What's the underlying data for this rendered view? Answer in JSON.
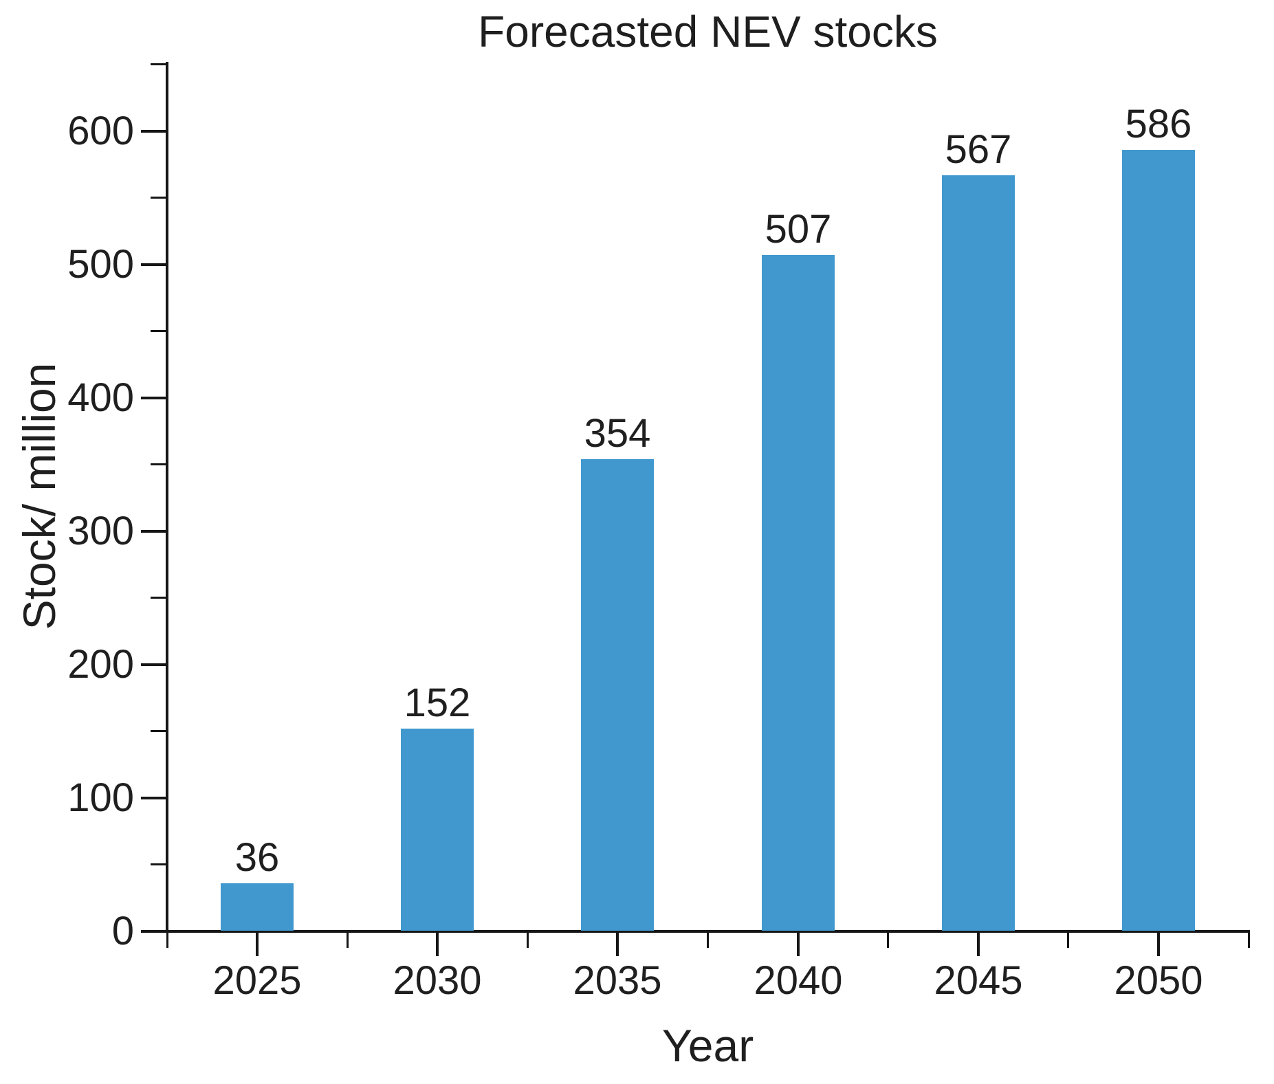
{
  "chart_data": {
    "type": "bar",
    "title": "Forecasted NEV stocks",
    "xlabel": "Year",
    "ylabel": "Stock/ million",
    "categories": [
      "2025",
      "2030",
      "2035",
      "2040",
      "2045",
      "2050"
    ],
    "values": [
      36,
      152,
      354,
      507,
      567,
      586
    ],
    "bar_value_labels": [
      "36",
      "152",
      "354",
      "507",
      "567",
      "586"
    ],
    "ylim": [
      0,
      652
    ],
    "yticks": [
      0,
      100,
      200,
      300,
      400,
      500,
      600
    ],
    "ytick_labels": [
      "0",
      "100",
      "200",
      "300",
      "400",
      "500",
      "600"
    ],
    "y_minor_tick_step": 50,
    "grid": "off",
    "legend_position": "none",
    "bar_color": "#4098CF",
    "axis_color": "#161616",
    "text_color": "#1f1f1f"
  }
}
